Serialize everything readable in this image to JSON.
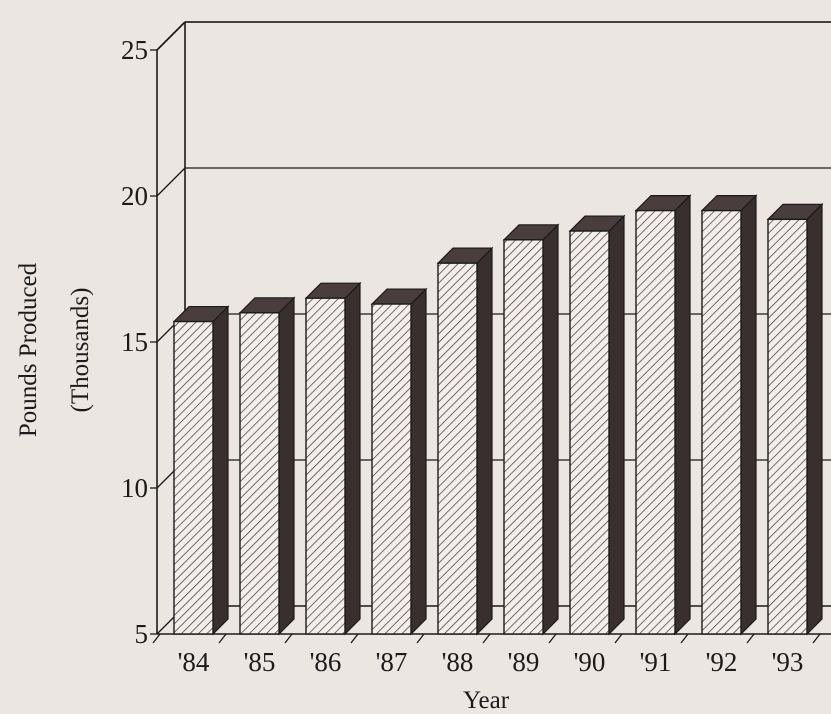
{
  "chart_data": {
    "type": "bar",
    "categories": [
      "'84",
      "'85",
      "'86",
      "'87",
      "'88",
      "'89",
      "'90",
      "'91",
      "'92",
      "'93"
    ],
    "values": [
      15.7,
      16.0,
      16.5,
      16.3,
      17.7,
      18.5,
      18.8,
      19.5,
      19.5,
      19.2
    ],
    "xlabel": "Year",
    "ylabel_line1": "Pounds Produced",
    "ylabel_line2": "(Thousands)",
    "ylim": [
      5,
      25
    ],
    "yticks": [
      5,
      10,
      15,
      20,
      25
    ],
    "ytick_labels": [
      "5",
      "10",
      "15",
      "20",
      "25"
    ],
    "style": "3d-hatched",
    "colors": {
      "face": "#f3eeeb",
      "side": "#3a2f2f",
      "top": "#4a3d3d",
      "ink": "#1b1b1b"
    }
  }
}
